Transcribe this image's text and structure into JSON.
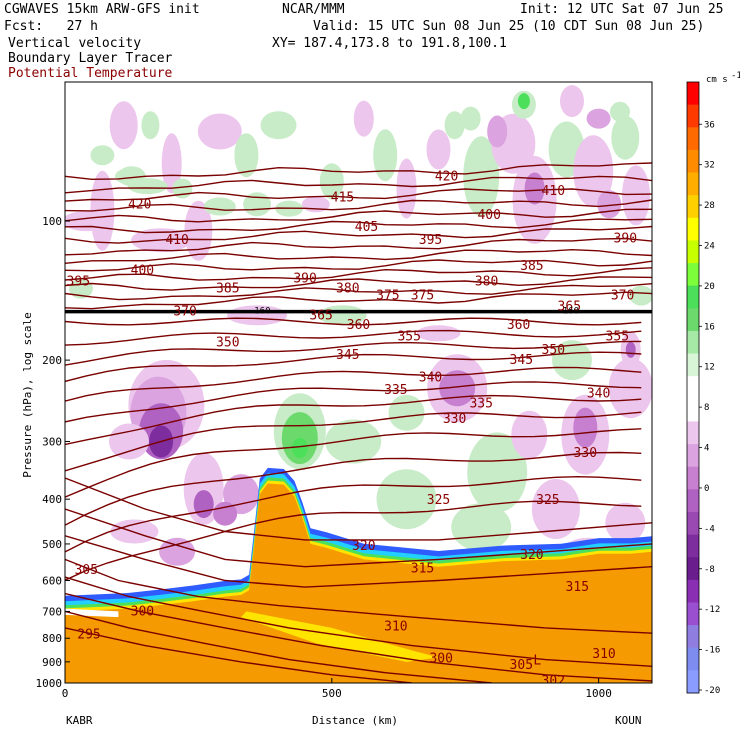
{
  "header": {
    "model": "CGWAVES 15km ARW-GFS init",
    "org": "NCAR/MMM",
    "init": "Init: 12 UTC Sat 07 Jun 25",
    "fcst": "Fcst:   27 h",
    "valid": "Valid: 15 UTC Sun 08 Jun 25 (10 CDT Sun 08 Jun 25)",
    "field1": "Vertical velocity",
    "xy": "XY= 187.4,173.8 to 191.8,100.1",
    "field2": "Boundary Layer Tracer",
    "field3": "Potential Temperature"
  },
  "colors": {
    "theta_contour": "#7a0000",
    "tropopause": "#000000",
    "bl_tracer": "#f59a00"
  },
  "chart_data": {
    "type": "heatmap",
    "ylabel": "Pressure (hPa), log scale",
    "xlabel": "Distance (km)",
    "x_range": [
      0,
      1100
    ],
    "y_range_hPa": [
      1000,
      50
    ],
    "y_scale": "log",
    "x_ticks": [
      "0",
      "500",
      "1000"
    ],
    "y_ticks": [
      "100",
      "200",
      "300",
      "400",
      "500",
      "600",
      "700",
      "800",
      "900",
      "1000"
    ],
    "endpoints": [
      "KABR",
      "KOUN"
    ],
    "colorbar": {
      "unit": "cm s",
      "unit_exponent": "-1",
      "tick_labels": [
        "36",
        "32",
        "28",
        "24",
        "20",
        "16",
        "12",
        "8",
        "4",
        "0",
        "-4",
        "-8",
        "-12",
        "-16",
        "-20"
      ],
      "colors": [
        "#ff0000",
        "#ff3a00",
        "#ff6a00",
        "#ff8c00",
        "#ffae00",
        "#ffd000",
        "#ffff00",
        "#c8ff00",
        "#7cff3a",
        "#4ce05a",
        "#6bd96b",
        "#a6e8a6",
        "#d8f5d8",
        "#ffffff",
        "#ffffff",
        "#ecc6ec",
        "#dba4e0",
        "#c77fd0",
        "#b062c2",
        "#9a48b2",
        "#7e2d9e",
        "#6a1d8c",
        "#8a2fb4",
        "#9a4ed0",
        "#8f7ee0",
        "#7e8cf0",
        "#8a9cff"
      ]
    },
    "theta_labels": [
      {
        "v": "420",
        "x": 140,
        "p": 92
      },
      {
        "v": "410",
        "x": 210,
        "p": 110
      },
      {
        "v": "400",
        "x": 145,
        "p": 128
      },
      {
        "v": "395",
        "x": 25,
        "p": 135
      },
      {
        "v": "385",
        "x": 305,
        "p": 140
      },
      {
        "v": "390",
        "x": 450,
        "p": 133
      },
      {
        "v": "380",
        "x": 530,
        "p": 140
      },
      {
        "v": "375",
        "x": 605,
        "p": 145
      },
      {
        "v": "375",
        "x": 670,
        "p": 145
      },
      {
        "v": "380",
        "x": 790,
        "p": 135
      },
      {
        "v": "385",
        "x": 875,
        "p": 125
      },
      {
        "v": "390",
        "x": 1050,
        "p": 109
      },
      {
        "v": "370",
        "x": 1045,
        "p": 145
      },
      {
        "v": "400",
        "x": 795,
        "p": 97
      },
      {
        "v": "410",
        "x": 915,
        "p": 86
      },
      {
        "v": "420",
        "x": 715,
        "p": 80
      },
      {
        "v": "415",
        "x": 520,
        "p": 89
      },
      {
        "v": "405",
        "x": 565,
        "p": 103
      },
      {
        "v": "395",
        "x": 685,
        "p": 110
      },
      {
        "v": "370",
        "x": 225,
        "p": 157
      },
      {
        "v": "365",
        "x": 480,
        "p": 160
      },
      {
        "v": "360",
        "x": 550,
        "p": 168
      },
      {
        "v": "360",
        "x": 850,
        "p": 168
      },
      {
        "v": "365",
        "x": 945,
        "p": 153
      },
      {
        "v": "355",
        "x": 645,
        "p": 178
      },
      {
        "v": "355",
        "x": 1035,
        "p": 178
      },
      {
        "v": "350",
        "x": 305,
        "p": 183
      },
      {
        "v": "350",
        "x": 915,
        "p": 190
      },
      {
        "v": "345",
        "x": 530,
        "p": 195
      },
      {
        "v": "345",
        "x": 855,
        "p": 200
      },
      {
        "v": "340",
        "x": 685,
        "p": 218
      },
      {
        "v": "340",
        "x": 1000,
        "p": 236
      },
      {
        "v": "335",
        "x": 620,
        "p": 232
      },
      {
        "v": "335",
        "x": 780,
        "p": 248
      },
      {
        "v": "330",
        "x": 730,
        "p": 268
      },
      {
        "v": "330",
        "x": 975,
        "p": 318
      },
      {
        "v": "325",
        "x": 700,
        "p": 402
      },
      {
        "v": "325",
        "x": 905,
        "p": 402
      },
      {
        "v": "320",
        "x": 560,
        "p": 505
      },
      {
        "v": "320",
        "x": 875,
        "p": 528
      },
      {
        "v": "315",
        "x": 670,
        "p": 565
      },
      {
        "v": "315",
        "x": 960,
        "p": 620
      },
      {
        "v": "310",
        "x": 620,
        "p": 755
      },
      {
        "v": "310",
        "x": 1010,
        "p": 865
      },
      {
        "v": "305",
        "x": 40,
        "p": 570
      },
      {
        "v": "305",
        "x": 855,
        "p": 915
      },
      {
        "v": "300",
        "x": 145,
        "p": 700
      },
      {
        "v": "300",
        "x": 705,
        "p": 885
      },
      {
        "v": "295",
        "x": 45,
        "p": 785
      },
      {
        "v": "L",
        "x": 885,
        "p": 895
      },
      {
        "v": "302",
        "x": 915,
        "p": 990
      }
    ],
    "tropopause_labels": [
      {
        "v": "160",
        "x": 370,
        "p": 156
      },
      {
        "v": "160",
        "x": 948,
        "p": 156
      }
    ]
  }
}
